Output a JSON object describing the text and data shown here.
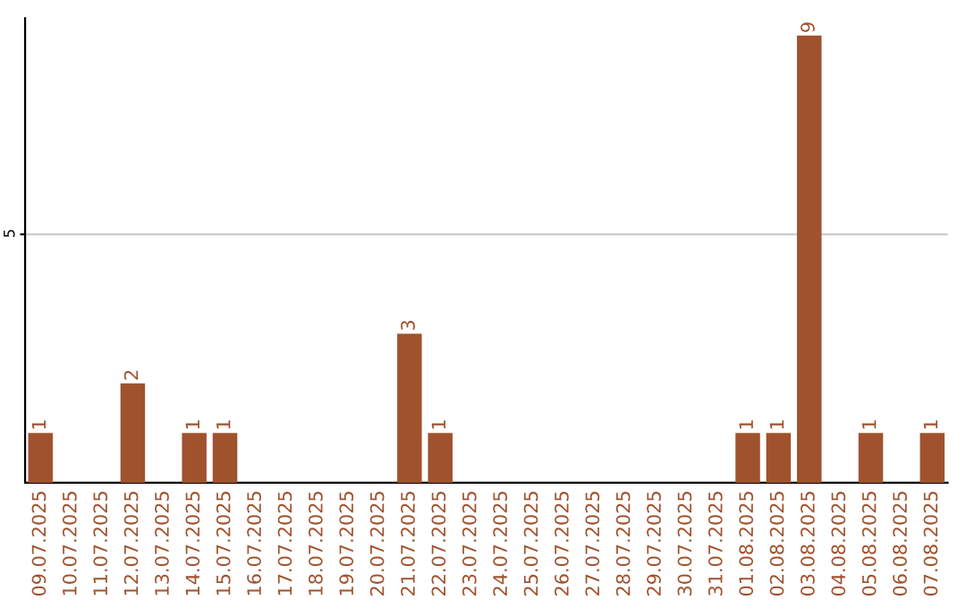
{
  "chart_data": {
    "type": "bar",
    "categories": [
      "09.07.2025",
      "10.07.2025",
      "11.07.2025",
      "12.07.2025",
      "13.07.2025",
      "14.07.2025",
      "15.07.2025",
      "16.07.2025",
      "17.07.2025",
      "18.07.2025",
      "19.07.2025",
      "20.07.2025",
      "21.07.2025",
      "22.07.2025",
      "23.07.2025",
      "24.07.2025",
      "25.07.2025",
      "26.07.2025",
      "27.07.2025",
      "28.07.2025",
      "29.07.2025",
      "30.07.2025",
      "31.07.2025",
      "01.08.2025",
      "02.08.2025",
      "03.08.2025",
      "04.08.2025",
      "05.08.2025",
      "06.08.2025",
      "07.08.2025"
    ],
    "values": [
      1,
      0,
      0,
      2,
      0,
      1,
      1,
      0,
      0,
      0,
      0,
      0,
      3,
      1,
      0,
      0,
      0,
      0,
      0,
      0,
      0,
      0,
      0,
      1,
      1,
      9,
      0,
      1,
      0,
      1
    ],
    "value_labels": [
      "1",
      null,
      null,
      "2",
      null,
      "1",
      "1",
      null,
      null,
      null,
      null,
      null,
      "3",
      "1",
      null,
      null,
      null,
      null,
      null,
      null,
      null,
      null,
      null,
      "1",
      "1",
      "9",
      null,
      "1",
      null,
      "1"
    ],
    "color": "#a0522d",
    "ylim": [
      0,
      9.35
    ],
    "yticks": [
      5
    ],
    "grid": "y"
  }
}
